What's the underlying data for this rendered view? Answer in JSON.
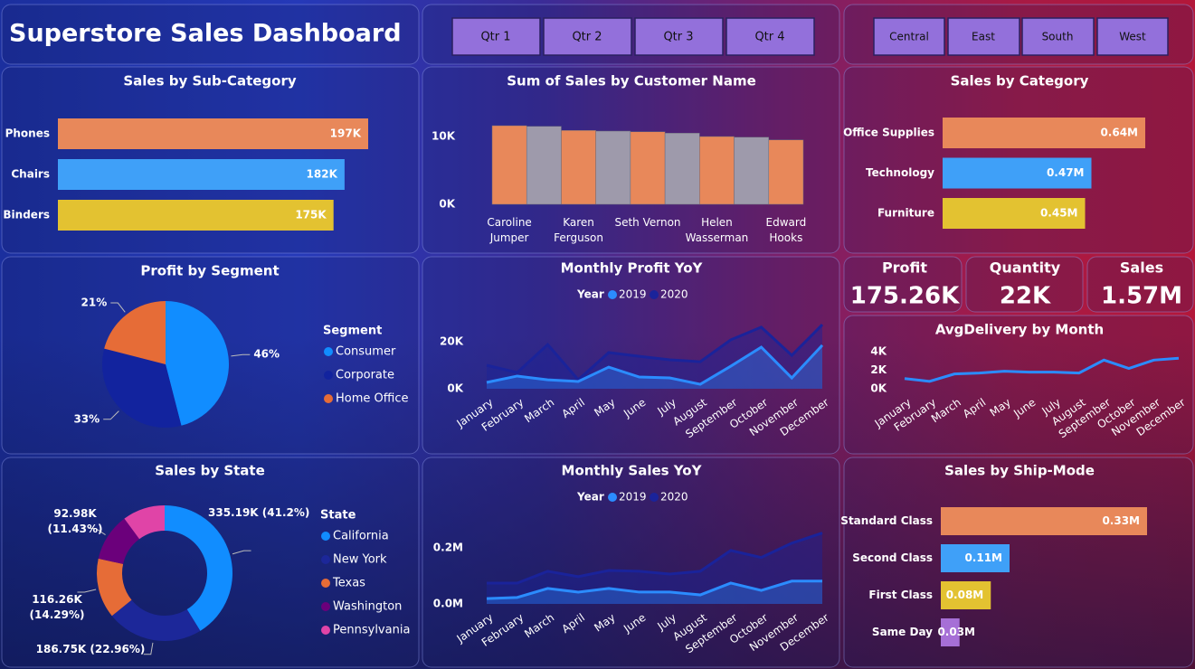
{
  "header": {
    "title": "Superstore Sales Dashboard"
  },
  "filters": {
    "quarters": [
      "Qtr 1",
      "Qtr 2",
      "Qtr 3",
      "Qtr 4"
    ],
    "regions": [
      "Central",
      "East",
      "South",
      "West"
    ]
  },
  "kpis": [
    {
      "label": "Profit",
      "value": "175.26K"
    },
    {
      "label": "Quantity",
      "value": "22K"
    },
    {
      "label": "Sales",
      "value": "1.57M"
    }
  ],
  "chart_data": [
    {
      "type": "hbar",
      "title": "Sales by Sub-Category",
      "categories": [
        "Phones",
        "Chairs",
        "Binders"
      ],
      "values": [
        197,
        182,
        175
      ],
      "value_labels": [
        "197K",
        "182K",
        "175K"
      ],
      "colors": [
        "#E8885A",
        "#3FA0F8",
        "#E3C231"
      ]
    },
    {
      "type": "bar",
      "title": "Sum of Sales by Customer Name",
      "categories": [
        "Caroline Jumper",
        null,
        "Karen Ferguson",
        null,
        "Seth Vernon",
        null,
        "Helen Wasserman",
        null,
        "Edward Hooks"
      ],
      "values": [
        11.6,
        11.5,
        10.9,
        10.8,
        10.7,
        10.5,
        10.0,
        9.9,
        9.5
      ],
      "colors": [
        "#E8885A",
        "#9E9AAB",
        "#E8885A",
        "#9E9AAB",
        "#E8885A",
        "#9E9AAB",
        "#E8885A",
        "#9E9AAB",
        "#E8885A"
      ],
      "ylim": [
        0,
        12.8
      ],
      "yticks": [
        {
          "value": 0,
          "label": "0K"
        },
        {
          "value": 10,
          "label": "10K"
        }
      ]
    },
    {
      "type": "hbar",
      "title": "Sales by Category",
      "categories": [
        "Office Supplies",
        "Technology",
        "Furniture"
      ],
      "values": [
        0.64,
        0.47,
        0.45
      ],
      "value_labels": [
        "0.64M",
        "0.47M",
        "0.45M"
      ],
      "colors": [
        "#E8885A",
        "#3FA0F8",
        "#E3C231"
      ]
    },
    {
      "type": "pie",
      "title": "Profit by Segment",
      "legend_title": "Segment",
      "categories": [
        "Consumer",
        "Corporate",
        "Home Office"
      ],
      "values": [
        46,
        33,
        21
      ],
      "value_labels": [
        "46%",
        "33%",
        "21%"
      ],
      "colors": [
        "#118DFF",
        "#12239E",
        "#E66C37"
      ]
    },
    {
      "type": "area",
      "title": "Monthly Profit YoY",
      "legend_title": "Year",
      "categories": [
        "January",
        "February",
        "March",
        "April",
        "May",
        "June",
        "July",
        "August",
        "September",
        "October",
        "November",
        "December"
      ],
      "series": [
        {
          "name": "2020",
          "color": "#1A239A",
          "values": [
            10.0,
            6.9,
            18.8,
            3.8,
            15.4,
            13.8,
            12.3,
            11.5,
            20.8,
            26.2,
            14.2,
            27.3
          ]
        },
        {
          "name": "2019",
          "color": "#2B8CFF",
          "values": [
            2.7,
            5.4,
            3.8,
            3.1,
            9.2,
            5.0,
            4.6,
            1.9,
            9.6,
            17.7,
            4.6,
            18.5
          ]
        }
      ],
      "ylim": [
        0,
        30
      ],
      "yticks": [
        {
          "value": 0,
          "label": "0K"
        },
        {
          "value": 20,
          "label": "20K"
        }
      ]
    },
    {
      "type": "line",
      "title": "AvgDelivery by Month",
      "categories": [
        "January",
        "February",
        "March",
        "April",
        "May",
        "June",
        "July",
        "August",
        "September",
        "October",
        "November",
        "December"
      ],
      "series": [
        {
          "name": "AvgDelivery",
          "color": "#2B8CFF",
          "values": [
            1.1,
            0.8,
            1.6,
            1.7,
            1.9,
            1.8,
            1.8,
            1.7,
            3.1,
            2.2,
            3.1,
            3.3
          ]
        }
      ],
      "ylim": [
        0,
        4.5
      ],
      "yticks": [
        {
          "value": 0,
          "label": "0K"
        },
        {
          "value": 2,
          "label": "2K"
        },
        {
          "value": 4,
          "label": "4K"
        }
      ]
    },
    {
      "type": "donut",
      "title": "Sales by State",
      "legend_title": "State",
      "categories": [
        "California",
        "New York",
        "Texas",
        "Washington",
        "Pennsylvania"
      ],
      "values": [
        335.19,
        186.75,
        116.26,
        92.98,
        82.4
      ],
      "value_labels": [
        "335.19K (41.2%)",
        "186.75K (22.96%)",
        "116.26K (14.29%)",
        "92.98K (11.43%)",
        null
      ],
      "colors": [
        "#118DFF",
        "#1C2799",
        "#E66C37",
        "#6B007B",
        "#E044A7"
      ]
    },
    {
      "type": "area",
      "title": "Monthly Sales YoY",
      "legend_title": "Year",
      "categories": [
        "January",
        "February",
        "March",
        "April",
        "May",
        "June",
        "July",
        "August",
        "September",
        "October",
        "November",
        "December"
      ],
      "series": [
        {
          "name": "2020",
          "color": "#1A239A",
          "values": [
            0.074,
            0.074,
            0.116,
            0.097,
            0.119,
            0.116,
            0.106,
            0.116,
            0.19,
            0.165,
            0.216,
            0.252
          ]
        },
        {
          "name": "2019",
          "color": "#2B8CFF",
          "values": [
            0.019,
            0.023,
            0.055,
            0.042,
            0.055,
            0.042,
            0.042,
            0.032,
            0.074,
            0.048,
            0.081,
            0.081
          ]
        }
      ],
      "ylim": [
        0,
        0.27
      ],
      "yticks": [
        {
          "value": 0,
          "label": "0.0M"
        },
        {
          "value": 0.2,
          "label": "0.2M"
        }
      ]
    },
    {
      "type": "hbar",
      "title": "Sales by Ship-Mode",
      "categories": [
        "Standard Class",
        "Second Class",
        "First Class",
        "Same Day"
      ],
      "values": [
        0.33,
        0.11,
        0.08,
        0.03
      ],
      "value_labels": [
        "0.33M",
        "0.11M",
        "0.08M",
        "0.03M"
      ],
      "colors": [
        "#E8885A",
        "#3FA0F8",
        "#E3C231",
        "#A66FD6"
      ]
    }
  ]
}
